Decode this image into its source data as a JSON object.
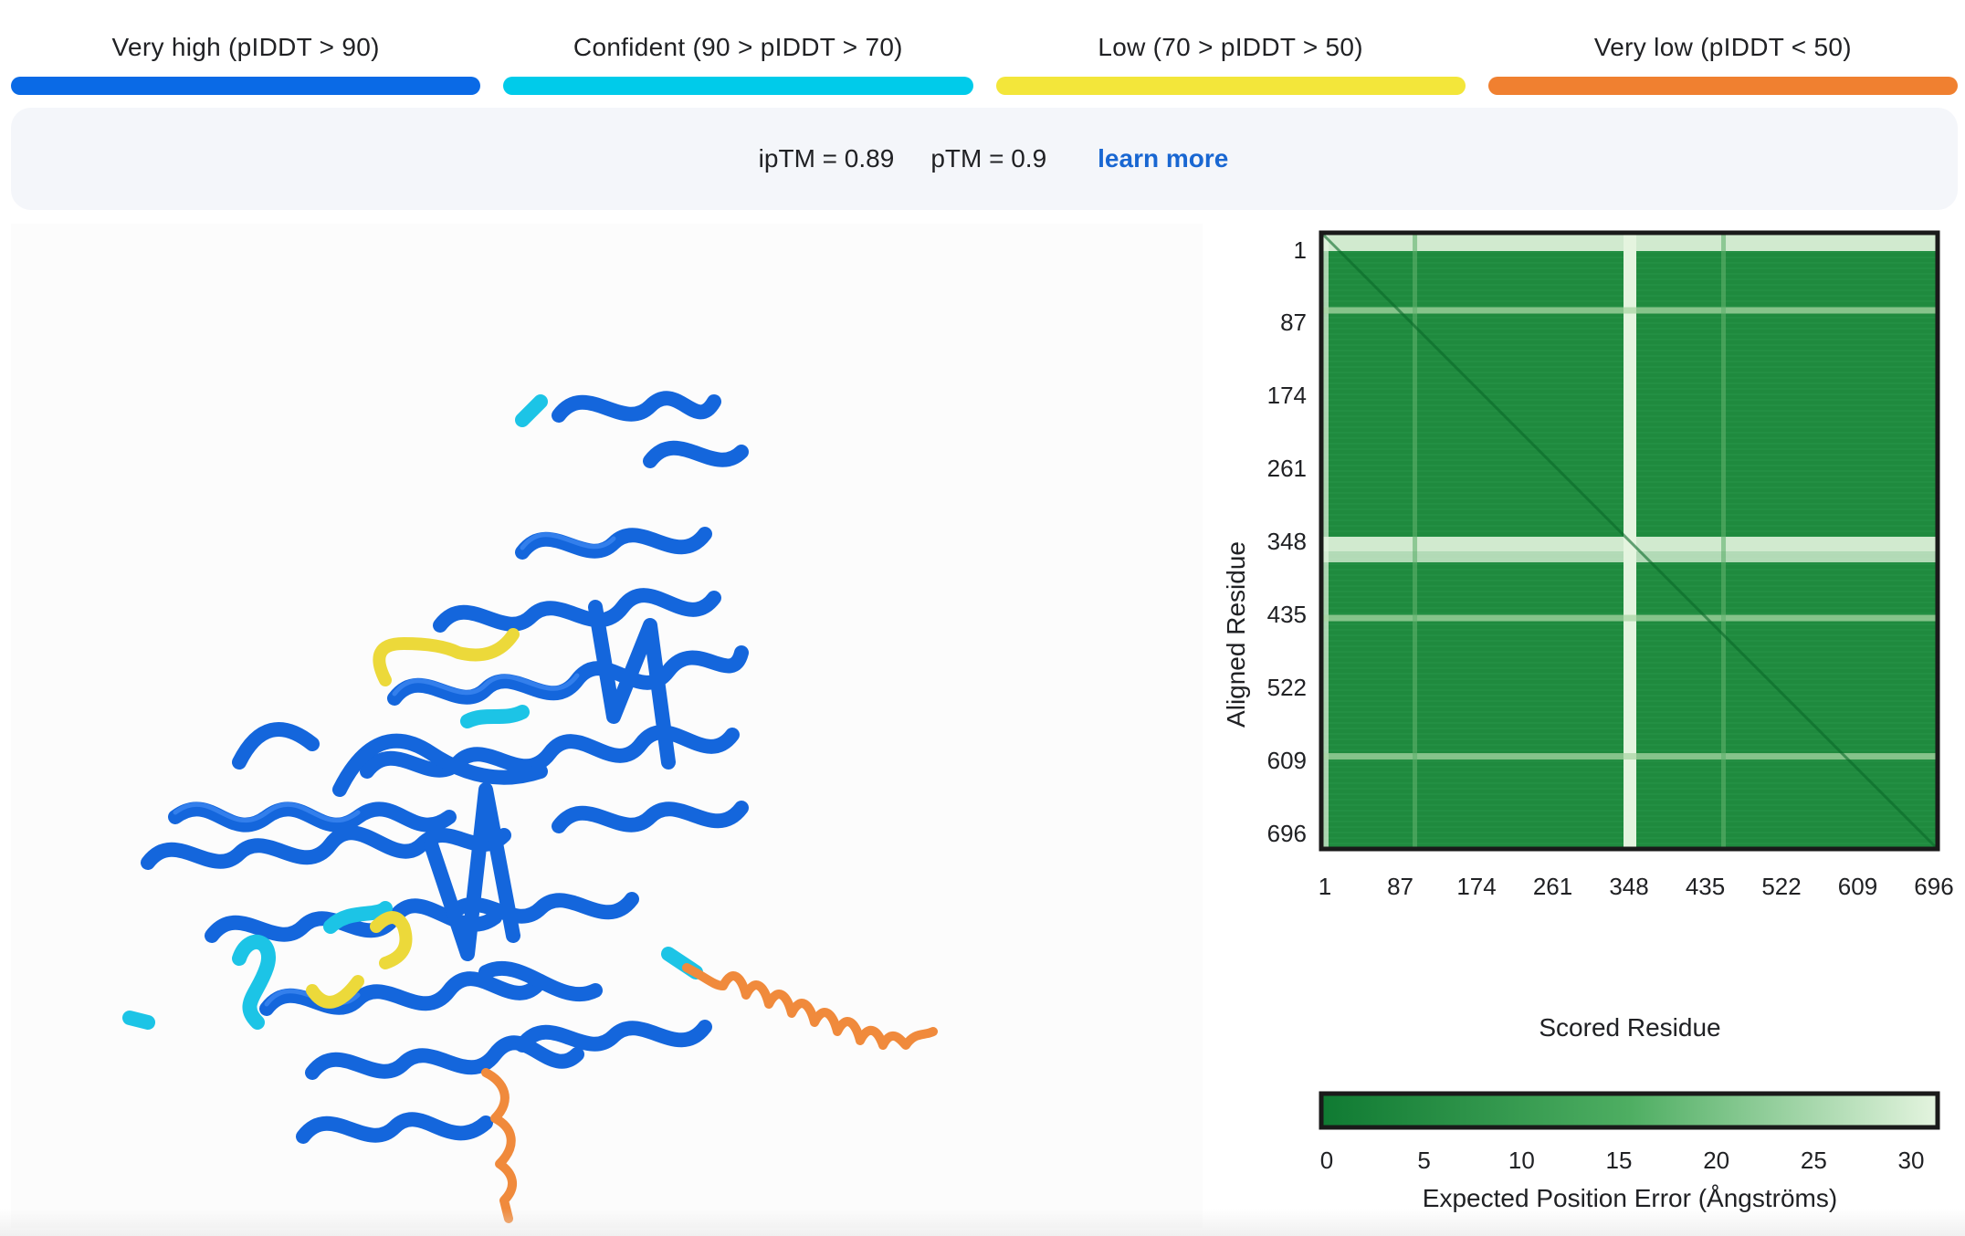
{
  "legend": [
    {
      "label": "Very high (pIDDT > 90)",
      "color": "#0a6ae6"
    },
    {
      "label": "Confident (90 > pIDDT > 70)",
      "color": "#00cbea"
    },
    {
      "label": "Low (70 > pIDDT > 50)",
      "color": "#f3e63a"
    },
    {
      "label": "Very low (pIDDT < 50)",
      "color": "#f08030"
    }
  ],
  "scores": {
    "iptm": "ipTM = 0.89",
    "ptm": "pTM = 0.9",
    "learn_more": "learn more"
  },
  "pae": {
    "y_axis_title": "Aligned Residue",
    "x_axis_title": "Scored Residue",
    "y_ticks": [
      "1",
      "87",
      "174",
      "261",
      "348",
      "435",
      "522",
      "609",
      "696"
    ],
    "x_ticks": [
      "1",
      "87",
      "174",
      "261",
      "348",
      "435",
      "522",
      "609",
      "696"
    ],
    "colorbar_ticks": [
      "0",
      "5",
      "10",
      "15",
      "20",
      "25",
      "30"
    ],
    "colorbar_title": "Expected Position Error (Ångströms)",
    "chain_boundary_residue": 348,
    "max_residue": 696,
    "colors": {
      "low": "#0f7a32",
      "mid": "#3ea85a",
      "high": "#e4f4df"
    }
  }
}
